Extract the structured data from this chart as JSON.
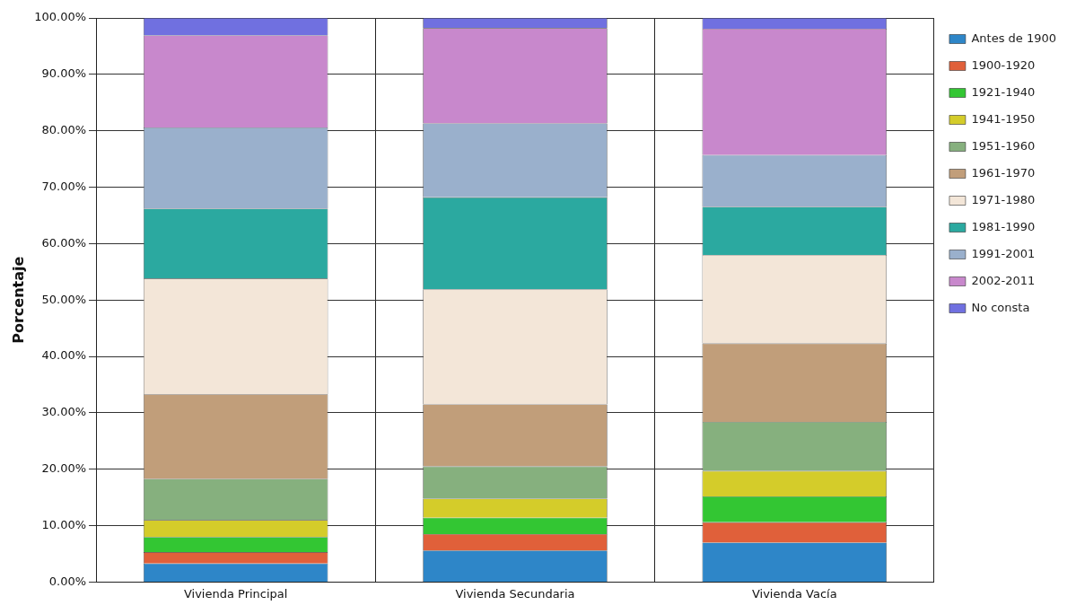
{
  "chart_data": {
    "type": "bar",
    "stacked": true,
    "ylabel": "Porcentaje",
    "categories": [
      "Vivienda Principal",
      "Vivienda Secundaria",
      "Vivienda Vacía"
    ],
    "series": [
      {
        "name": "Antes de 1900",
        "color": "#2e86c8",
        "values": [
          3.3,
          5.6,
          7.0
        ]
      },
      {
        "name": "1900-1920",
        "color": "#e0603a",
        "values": [
          2.0,
          2.9,
          3.6
        ]
      },
      {
        "name": "1921-1940",
        "color": "#33c633",
        "values": [
          2.7,
          2.9,
          4.6
        ]
      },
      {
        "name": "1941-1950",
        "color": "#d4cc2a",
        "values": [
          3.0,
          3.4,
          4.5
        ]
      },
      {
        "name": "1951-1960",
        "color": "#86b07e",
        "values": [
          7.3,
          5.7,
          8.7
        ]
      },
      {
        "name": "1961-1970",
        "color": "#c19e7a",
        "values": [
          15.0,
          11.0,
          13.9
        ]
      },
      {
        "name": "1971-1980",
        "color": "#f3e6d8",
        "values": [
          20.5,
          20.4,
          15.7
        ]
      },
      {
        "name": "1981-1990",
        "color": "#2ba9a0",
        "values": [
          12.4,
          16.3,
          8.5
        ]
      },
      {
        "name": "1991-2001",
        "color": "#9ab0cc",
        "values": [
          14.4,
          13.1,
          9.2
        ]
      },
      {
        "name": "2002-2011",
        "color": "#c888cc",
        "values": [
          16.3,
          16.9,
          22.4
        ]
      },
      {
        "name": "No consta",
        "color": "#7070e0",
        "values": [
          3.1,
          1.8,
          1.9
        ]
      }
    ],
    "ylim": [
      0,
      100
    ],
    "yticks": [
      {
        "value": 0,
        "label": "0.00%"
      },
      {
        "value": 10,
        "label": "10.00%"
      },
      {
        "value": 20,
        "label": "20.00%"
      },
      {
        "value": 30,
        "label": "30.00%"
      },
      {
        "value": 40,
        "label": "40.00%"
      },
      {
        "value": 50,
        "label": "50.00%"
      },
      {
        "value": 60,
        "label": "60.00%"
      },
      {
        "value": 70,
        "label": "70.00%"
      },
      {
        "value": 80,
        "label": "80.00%"
      },
      {
        "value": 90,
        "label": "90.00%"
      },
      {
        "value": 100,
        "label": "100.00%"
      }
    ],
    "grid": true,
    "legend": "top right"
  }
}
